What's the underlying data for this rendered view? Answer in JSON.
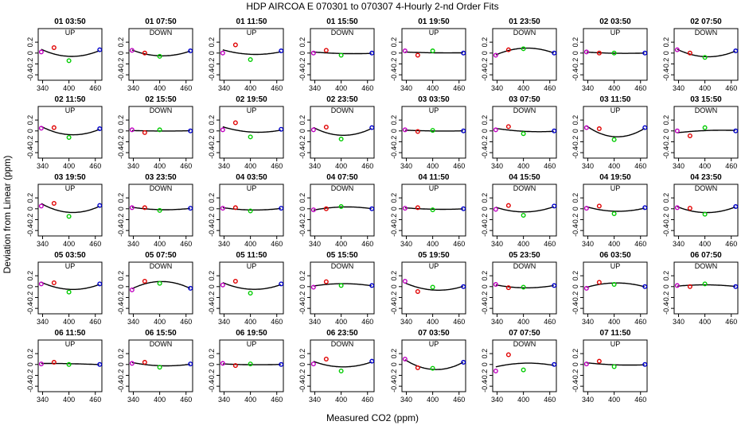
{
  "chart_data": {
    "type": "scatter",
    "title": "HDP   AIRCOA E   070301 to 070307   4-Hourly 2-nd Order Fits",
    "xlabel": "Measured CO2 (ppm)",
    "ylabel": "Deviation from Linear (ppm)",
    "xlim": [
      330,
      475
    ],
    "ylim": [
      -0.5,
      0.45
    ],
    "xticks": [
      340,
      400,
      460
    ],
    "yticks": [
      -0.4,
      -0.2,
      0,
      0.2
    ],
    "xtick_labels": [
      "340",
      "400",
      "460"
    ],
    "ytick_labels": [
      "-0.4",
      "-0.2",
      "0",
      "0.2"
    ],
    "standard_x": [
      337,
      366,
      400,
      470
    ],
    "standard_colors": [
      "#c000c0",
      "#e00000",
      "#00cc00",
      "#0000cc"
    ],
    "fit_color": "#000000",
    "panels": [
      {
        "label": "01 03:50",
        "dir": "UP",
        "points": [
          0.02,
          0.1,
          -0.14,
          0.06
        ]
      },
      {
        "label": "01 07:50",
        "dir": "DOWN",
        "points": [
          0.05,
          0.0,
          -0.06,
          0.04
        ]
      },
      {
        "label": "01 11:50",
        "dir": "UP",
        "points": [
          0.0,
          0.15,
          -0.12,
          0.04
        ]
      },
      {
        "label": "01 15:50",
        "dir": "DOWN",
        "points": [
          0.0,
          0.05,
          -0.04,
          0.0
        ]
      },
      {
        "label": "01 19:50",
        "dir": "UP",
        "points": [
          0.04,
          -0.04,
          0.04,
          0.0
        ]
      },
      {
        "label": "01 23:50",
        "dir": "DOWN",
        "points": [
          -0.04,
          0.06,
          0.08,
          0.0
        ]
      },
      {
        "label": "02 03:50",
        "dir": "UP",
        "points": [
          0.02,
          0.0,
          0.0,
          0.0
        ]
      },
      {
        "label": "02 07:50",
        "dir": "DOWN",
        "points": [
          0.06,
          0.0,
          -0.08,
          0.04
        ]
      },
      {
        "label": "02 11:50",
        "dir": "UP",
        "points": [
          0.05,
          0.06,
          -0.12,
          0.04
        ]
      },
      {
        "label": "02 15:50",
        "dir": "DOWN",
        "points": [
          0.02,
          -0.03,
          0.02,
          0.0
        ]
      },
      {
        "label": "02 19:50",
        "dir": "UP",
        "points": [
          0.02,
          0.15,
          -0.11,
          0.03
        ]
      },
      {
        "label": "02 23:50",
        "dir": "DOWN",
        "points": [
          0.02,
          0.07,
          -0.15,
          0.06
        ]
      },
      {
        "label": "03 03:50",
        "dir": "UP",
        "points": [
          0.02,
          -0.01,
          0.01,
          0.0
        ]
      },
      {
        "label": "03 07:50",
        "dir": "DOWN",
        "points": [
          0.02,
          0.08,
          -0.05,
          0.0
        ]
      },
      {
        "label": "03 11:50",
        "dir": "UP",
        "points": [
          0.06,
          0.04,
          -0.16,
          0.06
        ]
      },
      {
        "label": "03 15:50",
        "dir": "DOWN",
        "points": [
          0.0,
          -0.09,
          0.06,
          0.0
        ]
      },
      {
        "label": "03 19:50",
        "dir": "UP",
        "points": [
          0.05,
          0.1,
          -0.14,
          0.06
        ]
      },
      {
        "label": "03 23:50",
        "dir": "DOWN",
        "points": [
          0.02,
          0.02,
          -0.03,
          0.01
        ]
      },
      {
        "label": "04 03:50",
        "dir": "UP",
        "points": [
          0.01,
          0.02,
          -0.04,
          0.01
        ]
      },
      {
        "label": "04 07:50",
        "dir": "DOWN",
        "points": [
          -0.02,
          0.0,
          0.04,
          0.0
        ]
      },
      {
        "label": "04 11:50",
        "dir": "UP",
        "points": [
          0.01,
          0.02,
          -0.02,
          0.0
        ]
      },
      {
        "label": "04 15:50",
        "dir": "DOWN",
        "points": [
          -0.01,
          0.06,
          -0.12,
          0.05
        ]
      },
      {
        "label": "04 19:50",
        "dir": "UP",
        "points": [
          0.01,
          0.05,
          -0.09,
          0.02
        ]
      },
      {
        "label": "04 23:50",
        "dir": "DOWN",
        "points": [
          0.02,
          0.01,
          -0.1,
          0.04
        ]
      },
      {
        "label": "05 03:50",
        "dir": "UP",
        "points": [
          0.05,
          0.07,
          -0.1,
          0.05
        ]
      },
      {
        "label": "05 07:50",
        "dir": "DOWN",
        "points": [
          -0.06,
          0.1,
          0.06,
          -0.03
        ]
      },
      {
        "label": "05 11:50",
        "dir": "UP",
        "points": [
          0.03,
          0.1,
          -0.12,
          0.05
        ]
      },
      {
        "label": "05 15:50",
        "dir": "DOWN",
        "points": [
          -0.01,
          0.09,
          0.02,
          0.02
        ]
      },
      {
        "label": "05 19:50",
        "dir": "UP",
        "points": [
          0.1,
          -0.09,
          -0.01,
          0.0
        ]
      },
      {
        "label": "05 23:50",
        "dir": "DOWN",
        "points": [
          0.04,
          -0.02,
          -0.01,
          0.02
        ]
      },
      {
        "label": "06 03:50",
        "dir": "UP",
        "points": [
          -0.03,
          0.08,
          0.04,
          0.0
        ]
      },
      {
        "label": "06 07:50",
        "dir": "DOWN",
        "points": [
          0.02,
          0.0,
          0.05,
          0.0
        ]
      },
      {
        "label": "06 11:50",
        "dir": "UP",
        "points": [
          0.01,
          0.04,
          0.0,
          0.0
        ]
      },
      {
        "label": "06 15:50",
        "dir": "DOWN",
        "points": [
          0.02,
          0.04,
          -0.05,
          0.01
        ]
      },
      {
        "label": "06 19:50",
        "dir": "UP",
        "points": [
          0.02,
          -0.02,
          0.01,
          0.0
        ]
      },
      {
        "label": "06 23:50",
        "dir": "DOWN",
        "points": [
          0.01,
          0.1,
          -0.12,
          0.06
        ]
      },
      {
        "label": "07 03:50",
        "dir": "UP",
        "points": [
          0.1,
          -0.06,
          -0.07,
          0.04
        ]
      },
      {
        "label": "07 07:50",
        "dir": "DOWN",
        "points": [
          -0.12,
          0.18,
          -0.1,
          0.0
        ]
      },
      {
        "label": "07 11:50",
        "dir": "UP",
        "points": [
          0.01,
          0.06,
          -0.04,
          0.0
        ]
      }
    ]
  }
}
